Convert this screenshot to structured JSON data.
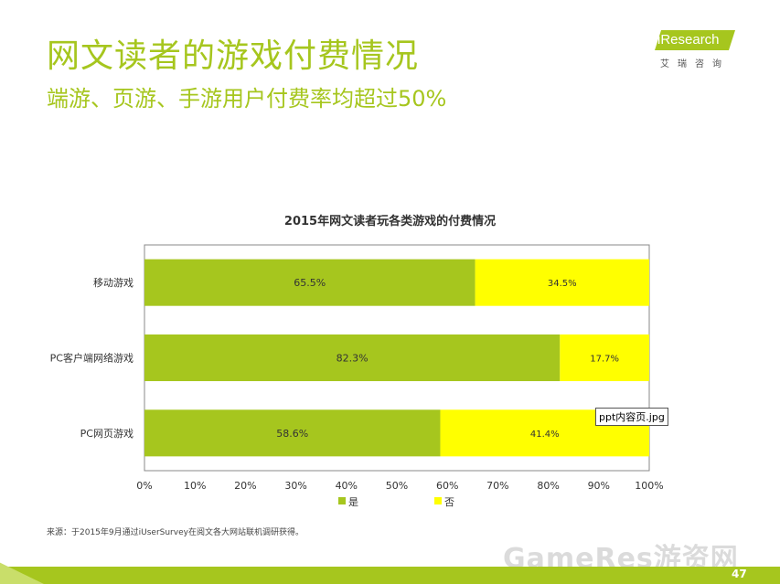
{
  "slide": {
    "title": "网文读者的游戏付费情况",
    "subtitle": "端游、页游、手游用户付费率均超过50%",
    "logo_text": "iResearch",
    "logo_sub": "艾瑞咨询",
    "source": "来源：于2015年9月通过iUserSurvey在阅文各大网站联机调研获得。",
    "watermark": "GameRes游资网",
    "page_number": "47",
    "tooltip": "ppt内容页.jpg"
  },
  "colors": {
    "accent": "#a6c61e",
    "series_yes": "#a6c61e",
    "series_no": "#ffff00"
  },
  "chart_data": {
    "type": "bar",
    "orientation": "horizontal",
    "stacked": true,
    "title": "2015年网文读者玩各类游戏的付费情况",
    "categories": [
      "移动游戏",
      "PC客户端网络游戏",
      "PC网页游戏"
    ],
    "series": [
      {
        "name": "是",
        "values": [
          65.5,
          82.3,
          58.6
        ],
        "labels": [
          "65.5%",
          "82.3%",
          "58.6%"
        ],
        "color": "#a6c61e"
      },
      {
        "name": "否",
        "values": [
          34.5,
          17.7,
          41.4
        ],
        "labels": [
          "34.5%",
          "17.7%",
          "41.4%"
        ],
        "color": "#ffff00"
      }
    ],
    "xlim": [
      0,
      100
    ],
    "x_ticks": [
      "0%",
      "10%",
      "20%",
      "30%",
      "40%",
      "50%",
      "60%",
      "70%",
      "80%",
      "90%",
      "100%"
    ],
    "xlabel": "",
    "ylabel": "",
    "legend_position": "bottom",
    "grid": false
  }
}
